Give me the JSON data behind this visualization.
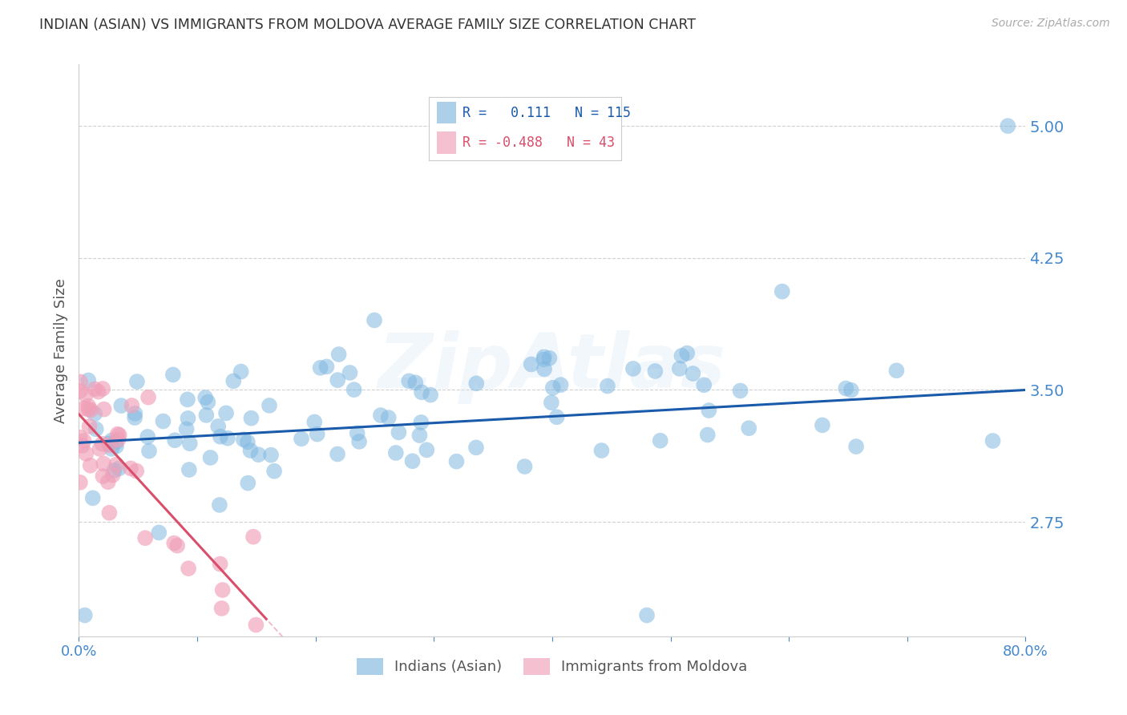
{
  "title": "INDIAN (ASIAN) VS IMMIGRANTS FROM MOLDOVA AVERAGE FAMILY SIZE CORRELATION CHART",
  "source": "Source: ZipAtlas.com",
  "ylabel": "Average Family Size",
  "xlim": [
    0.0,
    0.8
  ],
  "ylim": [
    2.1,
    5.35
  ],
  "yticks": [
    2.75,
    3.5,
    4.25,
    5.0
  ],
  "xticks": [
    0.0,
    0.1,
    0.2,
    0.3,
    0.4,
    0.5,
    0.6,
    0.7,
    0.8
  ],
  "xtick_labels": [
    "0.0%",
    "",
    "",
    "",
    "",
    "",
    "",
    "",
    "80.0%"
  ],
  "blue_R": 0.111,
  "blue_N": 115,
  "pink_R": -0.488,
  "pink_N": 43,
  "blue_color": "#80b8e0",
  "pink_color": "#f0a0b8",
  "blue_line_color": "#1a5aab",
  "pink_line_color": "#d94f6b",
  "legend1_label": "Indians (Asian)",
  "legend2_label": "Immigrants from Moldova",
  "watermark": "ZipAtlas",
  "background_color": "#ffffff",
  "grid_color": "#cccccc",
  "title_color": "#333333",
  "axis_label_color": "#4488cc"
}
